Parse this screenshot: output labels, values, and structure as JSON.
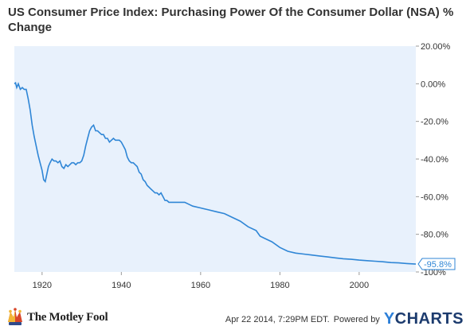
{
  "header": {
    "title": "US Consumer Price Index: Purchasing Power Of the Consumer Dollar (NSA) % Change"
  },
  "chart_data": {
    "type": "line",
    "title": "US Consumer Price Index: Purchasing Power Of the Consumer Dollar (NSA) % Change",
    "xlabel": "",
    "ylabel": "",
    "xlim": [
      1913,
      2014.3
    ],
    "ylim": [
      -100,
      20
    ],
    "x_ticks": [
      1920,
      1940,
      1960,
      1980,
      2000
    ],
    "x_tick_labels": [
      "1920",
      "1940",
      "1960",
      "1980",
      "2000"
    ],
    "y_ticks": [
      20,
      0,
      -20,
      -40,
      -60,
      -80,
      -100
    ],
    "y_tick_labels": [
      "20.00%",
      "0.00%",
      "-20.0%",
      "-40.0%",
      "-60.0%",
      "-80.0%",
      "-100%"
    ],
    "y_axis_position": "right",
    "grid": false,
    "line_color": "#2f86d6",
    "plot_background": "#e8f1fc",
    "last_value_label": "-95.8%",
    "series": [
      {
        "x": [
          1913,
          1913.3,
          1913.6,
          1914,
          1914.5,
          1915,
          1915.5,
          1916,
          1916.5,
          1917,
          1917.5,
          1918,
          1918.5,
          1919,
          1919.5,
          1920,
          1920.4,
          1920.8,
          1921.2,
          1921.6,
          1922,
          1922.5,
          1923,
          1923.5,
          1924,
          1924.5,
          1925,
          1925.5,
          1926,
          1926.5,
          1927,
          1927.5,
          1928,
          1928.5,
          1929,
          1929.5,
          1930,
          1930.5,
          1931,
          1931.5,
          1932,
          1932.5,
          1933,
          1933.5,
          1934,
          1934.5,
          1935,
          1935.5,
          1936,
          1936.5,
          1937,
          1937.5,
          1938,
          1938.5,
          1939,
          1939.5,
          1940,
          1940.5,
          1941,
          1941.5,
          1942,
          1942.5,
          1943,
          1943.5,
          1944,
          1944.5,
          1945,
          1945.5,
          1946,
          1946.5,
          1947,
          1947.5,
          1948,
          1948.5,
          1949,
          1949.5,
          1950,
          1950.5,
          1951,
          1951.5,
          1952,
          1953,
          1954,
          1955,
          1956,
          1957,
          1958,
          1960,
          1962,
          1964,
          1966,
          1968,
          1970,
          1972,
          1974,
          1975,
          1976,
          1978,
          1980,
          1982,
          1984,
          1986,
          1988,
          1990,
          1992,
          1994,
          1996,
          1998,
          2000,
          2002,
          2004,
          2006,
          2008,
          2010,
          2012,
          2014.3
        ],
        "y": [
          0,
          0.5,
          -2,
          0,
          -3,
          -2,
          -3,
          -3,
          -8,
          -14,
          -22,
          -28,
          -33,
          -38,
          -42,
          -46,
          -51,
          -52,
          -48,
          -44,
          -42,
          -40,
          -41,
          -41,
          -42,
          -41,
          -44,
          -45,
          -43,
          -44,
          -43,
          -42,
          -42,
          -43,
          -42,
          -42,
          -41,
          -38,
          -33,
          -29,
          -25,
          -23,
          -22,
          -25,
          -25,
          -26,
          -27,
          -27,
          -29,
          -29,
          -31,
          -30,
          -29,
          -30,
          -30,
          -30,
          -31,
          -33,
          -35,
          -39,
          -41,
          -42,
          -42,
          -43,
          -44,
          -47,
          -48,
          -51,
          -52,
          -54,
          -55,
          -56,
          -57,
          -58,
          -58,
          -59,
          -58,
          -60,
          -62,
          -62,
          -63,
          -63,
          -63,
          -63,
          -63,
          -64,
          -65,
          -66,
          -67,
          -68,
          -69,
          -71,
          -73,
          -76,
          -78,
          -81,
          -82,
          -84,
          -87,
          -89,
          -90,
          -90.5,
          -91,
          -91.5,
          -92,
          -92.5,
          -93,
          -93.3,
          -93.7,
          -94,
          -94.3,
          -94.6,
          -95,
          -95.2,
          -95.5,
          -95.8
        ]
      }
    ]
  },
  "footer": {
    "brand": "The Motley Fool",
    "timestamp": "Apr 22 2014, 7:29PM EDT.",
    "powered_by": "Powered by",
    "ycharts_y": "Y",
    "ycharts_rest": "CHARTS"
  },
  "icons": {
    "jester": "jester-hat-icon",
    "ycharts": "ycharts-logo-icon"
  }
}
